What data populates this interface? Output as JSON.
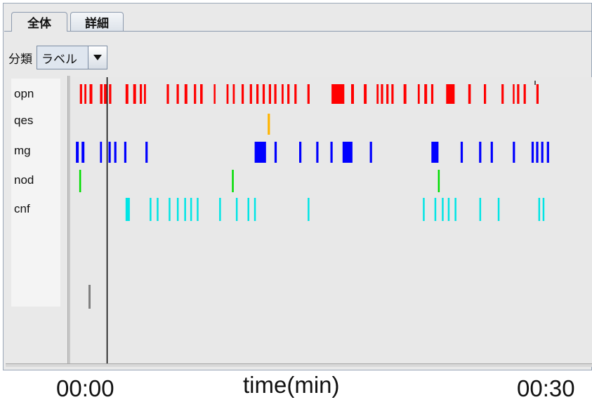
{
  "tabs": [
    {
      "label": "全体",
      "active": true
    },
    {
      "label": "詳細",
      "active": false
    }
  ],
  "filter": {
    "label": "分類",
    "selected": "ラベル"
  },
  "track_labels": [
    "opn",
    "qes",
    "mg",
    "nod",
    "cnf"
  ],
  "axis": {
    "start": "00:00",
    "title": "time(min)",
    "end": "00:30"
  },
  "colors": {
    "opn": "#ff0000",
    "qes": "#ffb400",
    "mg": "#0000ff",
    "nod": "#00dd00",
    "cnf": "#00e5e5",
    "cursor": "#000000",
    "extra": "#808080"
  },
  "chart_data": {
    "type": "event_timeline",
    "x_range_min": [
      0,
      30
    ],
    "cursor_min": 1.9,
    "series": [
      {
        "name": "opn",
        "intervals": [
          [
            0.34,
            0.42
          ],
          [
            0.5,
            0.57
          ],
          [
            0.68,
            0.78
          ],
          [
            1.05,
            1.14
          ],
          [
            1.19,
            1.28
          ],
          [
            1.37,
            1.45
          ],
          [
            1.95,
            2.05
          ],
          [
            2.22,
            2.32
          ],
          [
            2.45,
            2.53
          ],
          [
            2.6,
            2.67
          ],
          [
            3.4,
            3.48
          ],
          [
            3.75,
            3.83
          ],
          [
            4.03,
            4.13
          ],
          [
            4.36,
            4.44
          ],
          [
            4.58,
            4.67
          ],
          [
            5.06,
            5.12
          ],
          [
            5.51,
            5.58
          ],
          [
            5.73,
            5.8
          ],
          [
            6.04,
            6.12
          ],
          [
            6.33,
            6.41
          ],
          [
            6.56,
            6.64
          ],
          [
            6.78,
            6.86
          ],
          [
            7.0,
            7.08
          ],
          [
            7.19,
            7.27
          ],
          [
            7.45,
            7.52
          ],
          [
            7.65,
            7.73
          ],
          [
            7.9,
            7.98
          ],
          [
            8.36,
            8.44
          ],
          [
            9.21,
            9.66
          ],
          [
            9.9,
            10.0
          ],
          [
            10.35,
            10.45
          ],
          [
            10.8,
            10.87
          ],
          [
            10.95,
            11.03
          ],
          [
            11.14,
            11.22
          ],
          [
            11.32,
            11.4
          ],
          [
            11.75,
            11.85
          ],
          [
            12.25,
            12.32
          ],
          [
            12.48,
            12.58
          ],
          [
            12.72,
            12.8
          ],
          [
            13.25,
            13.55
          ],
          [
            14.03,
            14.12
          ],
          [
            14.58,
            14.66
          ],
          [
            15.2,
            15.28
          ],
          [
            15.6,
            15.66
          ],
          [
            15.75,
            15.83
          ],
          [
            15.98,
            16.06
          ],
          [
            16.43,
            16.51
          ]
        ]
      },
      {
        "name": "qes",
        "intervals": [
          [
            6.96,
            7.04
          ]
        ]
      },
      {
        "name": "mg",
        "intervals": [
          [
            0.2,
            0.3
          ],
          [
            0.4,
            0.5
          ],
          [
            1.05,
            1.12
          ],
          [
            1.35,
            1.43
          ],
          [
            1.55,
            1.63
          ],
          [
            1.9,
            1.98
          ],
          [
            2.65,
            2.73
          ],
          [
            6.5,
            6.9
          ],
          [
            7.2,
            7.28
          ],
          [
            8.07,
            8.15
          ],
          [
            8.67,
            8.75
          ],
          [
            9.17,
            9.25
          ],
          [
            9.6,
            9.95
          ],
          [
            10.56,
            10.64
          ],
          [
            12.73,
            12.98
          ],
          [
            13.76,
            13.84
          ],
          [
            14.41,
            14.49
          ],
          [
            14.82,
            14.9
          ],
          [
            15.6,
            15.68
          ],
          [
            16.26,
            16.34
          ],
          [
            16.42,
            16.5
          ],
          [
            16.6,
            16.68
          ],
          [
            16.8,
            16.88
          ]
        ]
      },
      {
        "name": "nod",
        "intervals": [
          [
            0.32,
            0.38
          ],
          [
            5.7,
            5.76
          ],
          [
            12.96,
            13.02
          ]
        ]
      },
      {
        "name": "cnf",
        "intervals": [
          [
            1.95,
            2.1
          ],
          [
            2.8,
            2.86
          ],
          [
            3.05,
            3.11
          ],
          [
            3.47,
            3.53
          ],
          [
            3.76,
            3.82
          ],
          [
            4.02,
            4.08
          ],
          [
            4.23,
            4.29
          ],
          [
            4.46,
            4.52
          ],
          [
            5.25,
            5.31
          ],
          [
            5.84,
            5.9
          ],
          [
            6.25,
            6.31
          ],
          [
            6.48,
            6.54
          ],
          [
            8.37,
            8.43
          ],
          [
            12.43,
            12.49
          ],
          [
            12.84,
            12.9
          ],
          [
            13.1,
            13.16
          ],
          [
            13.31,
            13.37
          ],
          [
            13.55,
            13.61
          ],
          [
            14.42,
            14.48
          ],
          [
            15.07,
            15.13
          ],
          [
            16.5,
            16.56
          ],
          [
            16.65,
            16.71
          ]
        ]
      }
    ]
  }
}
